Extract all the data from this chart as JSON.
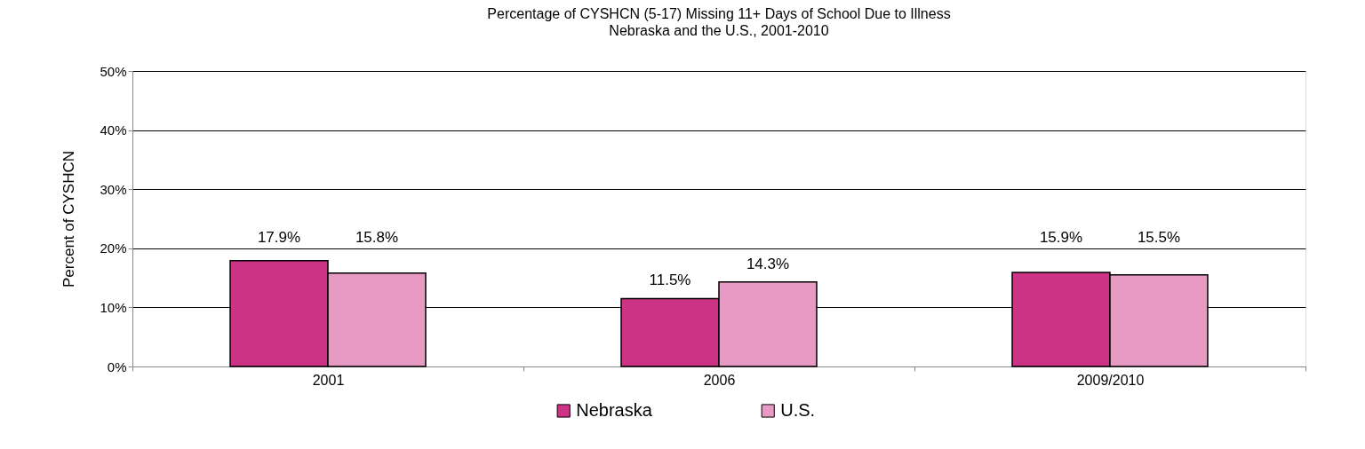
{
  "chart_data": {
    "type": "bar",
    "title": "Percentage of CYSHCN (5-17) Missing 11+ Days of School Due to Illness",
    "subtitle": "Nebraska and the U.S., 2001-2010",
    "ylabel": "Percent of CYSHCN",
    "categories": [
      "2001",
      "2006",
      "2009/2010"
    ],
    "series": [
      {
        "name": "Nebraska",
        "color": "#cc3385",
        "values": [
          17.9,
          11.5,
          15.9
        ],
        "value_labels": [
          "17.9%",
          "11.5%",
          "15.9%"
        ]
      },
      {
        "name": "U.S.",
        "color": "#e69ac4",
        "values": [
          15.8,
          14.3,
          15.5
        ],
        "value_labels": [
          "15.8%",
          "14.3%",
          "15.5%"
        ]
      }
    ],
    "ylim": [
      0,
      50
    ],
    "yticks": [
      {
        "value": 0,
        "label": "0%"
      },
      {
        "value": 10,
        "label": "10%"
      },
      {
        "value": 20,
        "label": "20%"
      },
      {
        "value": 30,
        "label": "30%"
      },
      {
        "value": 40,
        "label": "40%"
      },
      {
        "value": 50,
        "label": "50%"
      }
    ],
    "grid": "y",
    "legend": "bottom"
  }
}
